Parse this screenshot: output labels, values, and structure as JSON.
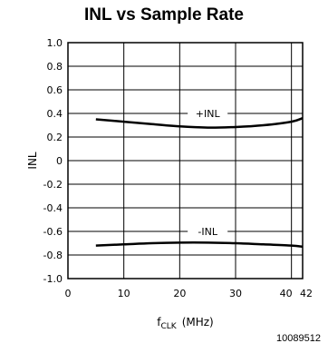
{
  "chart_data": {
    "type": "line",
    "title": "INL vs Sample Rate",
    "xlabel": "f",
    "xlabel_subscript": "CLK",
    "xlabel_unit": "(MHz)",
    "ylabel": "INL",
    "xlim": [
      0,
      42
    ],
    "ylim": [
      -1.0,
      1.0
    ],
    "x_ticks": [
      0,
      10,
      20,
      30,
      40,
      42
    ],
    "x_tick_labels": [
      "0",
      "10",
      "20",
      "30",
      "40",
      "42"
    ],
    "y_ticks": [
      1.0,
      0.8,
      0.6,
      0.4,
      0.2,
      0,
      -0.2,
      -0.4,
      -0.6,
      -0.8,
      -1.0
    ],
    "y_tick_labels": [
      "1.0",
      "0.8",
      "0.6",
      "0.4",
      "0.2",
      "0",
      "-0.2",
      "-0.4",
      "-0.6",
      "-0.8",
      "-1.0"
    ],
    "grid": true,
    "series": [
      {
        "name": "+INL",
        "x": [
          5,
          10,
          15,
          20,
          25,
          30,
          35,
          40,
          42
        ],
        "y": [
          0.35,
          0.33,
          0.31,
          0.29,
          0.28,
          0.285,
          0.3,
          0.33,
          0.36
        ]
      },
      {
        "name": "-INL",
        "x": [
          5,
          10,
          15,
          20,
          25,
          30,
          35,
          40,
          42
        ],
        "y": [
          -0.72,
          -0.71,
          -0.7,
          -0.695,
          -0.695,
          -0.7,
          -0.71,
          -0.72,
          -0.73
        ]
      }
    ]
  },
  "figure_id": "10089512"
}
